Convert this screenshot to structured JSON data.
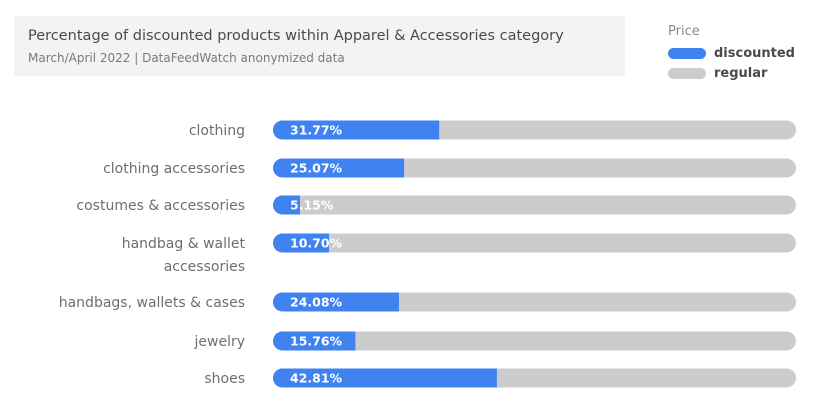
{
  "title": "Percentage of discounted products within Apparel & Accessories category",
  "subtitle": "March/April 2022 | DataFeedWatch anonymized data",
  "legend": {
    "title": "Price",
    "items": [
      {
        "label": "discounted",
        "color": "#3f82f0"
      },
      {
        "label": "regular",
        "color": "#cccccc"
      }
    ]
  },
  "chart_data": {
    "type": "bar",
    "orientation": "horizontal",
    "stacked": true,
    "categories": [
      [
        "clothing"
      ],
      [
        "clothing accessories"
      ],
      [
        "costumes & accessories"
      ],
      [
        "handbag & wallet",
        "accessories"
      ],
      [
        "handbags, wallets & cases"
      ],
      [
        "jewelry"
      ],
      [
        "shoes"
      ]
    ],
    "series": [
      {
        "name": "discounted",
        "values": [
          31.77,
          25.07,
          5.15,
          10.7,
          24.08,
          15.76,
          42.81
        ],
        "color": "#3f82f0"
      },
      {
        "name": "regular",
        "values": [
          68.23,
          74.93,
          94.85,
          89.3,
          75.92,
          84.24,
          57.19
        ],
        "color": "#cccccc"
      }
    ],
    "data_labels": [
      "31.77%",
      "25.07%",
      "5.15%",
      "10.70%",
      "24.08%",
      "15.76%",
      "42.81%"
    ],
    "xlim": [
      0,
      100
    ],
    "grid": false,
    "legend_position": "top-right"
  }
}
